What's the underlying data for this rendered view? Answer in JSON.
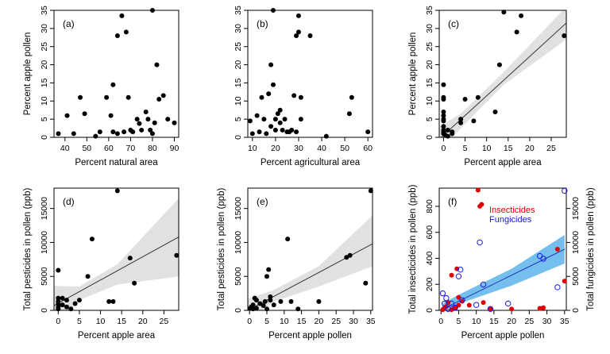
{
  "chart_data": [
    {
      "panel_label": "(a)",
      "type": "scatter",
      "xlabel": "Percent natural area",
      "ylabel": "Percent apple pollen",
      "xlim": [
        35,
        92
      ],
      "ylim": [
        0,
        35
      ],
      "xticks": [
        40,
        50,
        60,
        70,
        80,
        90
      ],
      "yticks": [
        0,
        5,
        10,
        15,
        20,
        25,
        30,
        35
      ],
      "points": [
        [
          37,
          1
        ],
        [
          41,
          6
        ],
        [
          44,
          1
        ],
        [
          47,
          11
        ],
        [
          49,
          6.5
        ],
        [
          54,
          0.3
        ],
        [
          56,
          1.5
        ],
        [
          59,
          11
        ],
        [
          61,
          6
        ],
        [
          62,
          14.5
        ],
        [
          62,
          1.5
        ],
        [
          64,
          28
        ],
        [
          64,
          1
        ],
        [
          66,
          33.5
        ],
        [
          67,
          1.5
        ],
        [
          68,
          29
        ],
        [
          69,
          11
        ],
        [
          70,
          2
        ],
        [
          71,
          1.5
        ],
        [
          73,
          5
        ],
        [
          74,
          3.8
        ],
        [
          75,
          2
        ],
        [
          77,
          7
        ],
        [
          78,
          5
        ],
        [
          79,
          2
        ],
        [
          80,
          35
        ],
        [
          80,
          1
        ],
        [
          81,
          4
        ],
        [
          82,
          20
        ],
        [
          83,
          10.5
        ],
        [
          85,
          11.5
        ],
        [
          87,
          5
        ],
        [
          90,
          4
        ]
      ]
    },
    {
      "panel_label": "(b)",
      "type": "scatter",
      "xlabel": "Percent agricultural area",
      "ylabel": "",
      "xlim": [
        8,
        62
      ],
      "ylim": [
        0,
        35
      ],
      "xticks": [
        10,
        20,
        30,
        40,
        50,
        60
      ],
      "yticks": [
        0,
        5,
        10,
        15,
        20,
        25,
        30,
        35
      ],
      "points": [
        [
          9,
          4.5
        ],
        [
          10,
          1
        ],
        [
          12,
          6
        ],
        [
          13,
          1.5
        ],
        [
          14,
          11
        ],
        [
          15,
          5
        ],
        [
          16,
          1
        ],
        [
          17,
          12
        ],
        [
          18,
          3
        ],
        [
          18,
          20
        ],
        [
          19,
          14.5
        ],
        [
          19,
          35
        ],
        [
          20,
          5
        ],
        [
          20,
          2
        ],
        [
          21,
          6.5
        ],
        [
          22,
          7.5
        ],
        [
          22,
          4
        ],
        [
          23,
          2
        ],
        [
          24,
          5
        ],
        [
          25,
          1.5
        ],
        [
          26,
          1.5
        ],
        [
          27,
          2
        ],
        [
          28,
          11.5
        ],
        [
          29,
          1.5
        ],
        [
          29,
          28
        ],
        [
          30,
          33.5
        ],
        [
          30,
          29
        ],
        [
          31,
          5
        ],
        [
          31,
          11
        ],
        [
          35,
          28
        ],
        [
          42,
          0.3
        ],
        [
          52,
          6.5
        ],
        [
          53,
          11
        ],
        [
          60,
          1.5
        ]
      ]
    },
    {
      "panel_label": "(c)",
      "type": "scatter",
      "xlabel": "Percent apple area",
      "ylabel": "Percent apple pollen",
      "xlim": [
        -1,
        28.5
      ],
      "ylim": [
        0,
        35
      ],
      "xticks": [
        0,
        5,
        10,
        15,
        20,
        25
      ],
      "yticks": [
        0,
        5,
        10,
        15,
        20,
        25,
        30,
        35
      ],
      "fit": [
        [
          -1,
          -0.5
        ],
        [
          28.5,
          31.5
        ]
      ],
      "band_low": [
        [
          -1,
          -4
        ],
        [
          4,
          2.5
        ],
        [
          14,
          14.5
        ],
        [
          28.5,
          27
        ]
      ],
      "band_high": [
        [
          -1,
          3
        ],
        [
          4,
          6.5
        ],
        [
          14,
          18
        ],
        [
          28.5,
          36
        ]
      ],
      "band_color": "#c8c8c8",
      "points": [
        [
          0,
          14.5
        ],
        [
          0,
          11
        ],
        [
          0,
          10.5
        ],
        [
          0,
          7
        ],
        [
          0,
          6
        ],
        [
          0,
          5
        ],
        [
          0,
          4.5
        ],
        [
          0,
          3
        ],
        [
          0,
          2
        ],
        [
          0,
          1.5
        ],
        [
          0,
          1
        ],
        [
          0.5,
          0.5
        ],
        [
          1,
          0.3
        ],
        [
          1,
          2
        ],
        [
          2,
          1.5
        ],
        [
          2,
          1
        ],
        [
          4,
          4
        ],
        [
          4,
          5
        ],
        [
          5,
          10.5
        ],
        [
          7,
          4.5
        ],
        [
          8,
          11
        ],
        [
          12,
          7
        ],
        [
          13,
          20
        ],
        [
          14,
          34.5
        ],
        [
          17,
          29
        ],
        [
          18,
          33.5
        ],
        [
          28,
          28
        ]
      ]
    },
    {
      "panel_label": "(d)",
      "type": "scatter",
      "xlabel": "Percent apple area",
      "ylabel": "Total pesticides in pollen (ppb)",
      "xlim": [
        -1,
        28.5
      ],
      "ylim": [
        0,
        18000
      ],
      "xticks": [
        0,
        5,
        10,
        15,
        20,
        25
      ],
      "yticks": [
        0,
        5000,
        10000,
        15000
      ],
      "fit": [
        [
          -1,
          700
        ],
        [
          28.5,
          10800
        ]
      ],
      "band_low": [
        [
          -1,
          -2500
        ],
        [
          5,
          1500
        ],
        [
          14,
          3800
        ],
        [
          28.5,
          5000
        ]
      ],
      "band_high": [
        [
          -1,
          3600
        ],
        [
          5,
          3500
        ],
        [
          14,
          6800
        ],
        [
          28.5,
          16500
        ]
      ],
      "band_color": "#c8c8c8",
      "points": [
        [
          0,
          5900
        ],
        [
          0,
          1800
        ],
        [
          0,
          1300
        ],
        [
          0,
          900
        ],
        [
          0,
          500
        ],
        [
          0,
          200
        ],
        [
          1,
          1800
        ],
        [
          1,
          800
        ],
        [
          2,
          1500
        ],
        [
          2,
          500
        ],
        [
          3,
          200
        ],
        [
          4,
          1000
        ],
        [
          5,
          1500
        ],
        [
          7,
          5000
        ],
        [
          8,
          10500
        ],
        [
          12,
          1300
        ],
        [
          13,
          1300
        ],
        [
          14,
          17600
        ],
        [
          17,
          7700
        ],
        [
          18,
          4000
        ],
        [
          28,
          8100
        ]
      ]
    },
    {
      "panel_label": "(e)",
      "type": "scatter",
      "xlabel": "Percent apple pollen",
      "ylabel": "Total pesticides in pollen (ppb)",
      "xlim": [
        -0.5,
        35.5
      ],
      "ylim": [
        0,
        18000
      ],
      "xticks": [
        0,
        5,
        10,
        15,
        20,
        25,
        30,
        35
      ],
      "yticks": [
        0,
        5000,
        10000,
        15000
      ],
      "fit": [
        [
          -0.5,
          0
        ],
        [
          35.5,
          9800
        ]
      ],
      "band_low": [
        [
          -0.5,
          -1800
        ],
        [
          7,
          1300
        ],
        [
          20,
          3500
        ],
        [
          35.5,
          6500
        ]
      ],
      "band_high": [
        [
          -0.5,
          1700
        ],
        [
          7,
          3000
        ],
        [
          20,
          6500
        ],
        [
          35.5,
          14000
        ]
      ],
      "band_color": "#c8c8c8",
      "points": [
        [
          0.2,
          300
        ],
        [
          0.5,
          500
        ],
        [
          1,
          800
        ],
        [
          1,
          200
        ],
        [
          1.5,
          1800
        ],
        [
          2,
          1500
        ],
        [
          2,
          300
        ],
        [
          3,
          1000
        ],
        [
          4,
          700
        ],
        [
          4.5,
          1300
        ],
        [
          5,
          200
        ],
        [
          5,
          5000
        ],
        [
          5.5,
          6000
        ],
        [
          6,
          1500
        ],
        [
          6,
          2000
        ],
        [
          7,
          800
        ],
        [
          9,
          1300
        ],
        [
          11,
          10500
        ],
        [
          12,
          1300
        ],
        [
          14,
          200
        ],
        [
          20,
          1300
        ],
        [
          28,
          7800
        ],
        [
          29,
          8100
        ],
        [
          33.5,
          4000
        ],
        [
          35,
          17600
        ]
      ]
    },
    {
      "panel_label": "(f)",
      "type": "scatter",
      "xlabel": "Percent apple pollen",
      "ylabel": "Total insecticides in pollen (ppb)",
      "ylabel_right": "Total fungicides in pollen (ppb)",
      "xlim": [
        -0.5,
        35.5
      ],
      "ylim": [
        0,
        940
      ],
      "ylim_right": [
        0,
        18000
      ],
      "xticks": [
        0,
        5,
        10,
        15,
        20,
        25,
        30,
        35
      ],
      "yticks": [
        0,
        200,
        400,
        600,
        800
      ],
      "yticks_right": [
        0,
        5000,
        10000,
        15000
      ],
      "fit": [
        [
          0.5,
          10
        ],
        [
          35,
          470
        ]
      ],
      "band_low": [
        [
          0.5,
          -40
        ],
        [
          5,
          50
        ],
        [
          20,
          190
        ],
        [
          35,
          360
        ]
      ],
      "band_high": [
        [
          0.5,
          55
        ],
        [
          5,
          120
        ],
        [
          20,
          320
        ],
        [
          35,
          580
        ]
      ],
      "band_color": "#66b8ec",
      "legend": [
        {
          "name": "Insecticides",
          "color": "#e00000"
        },
        {
          "name": "Fungicides",
          "color": "#1a1adf"
        }
      ],
      "series": [
        {
          "name": "Insecticides",
          "color": "#e00000",
          "marker": "filled",
          "points": [
            [
              0.5,
              5
            ],
            [
              1,
              20
            ],
            [
              1.5,
              30
            ],
            [
              2,
              60
            ],
            [
              3,
              270
            ],
            [
              3,
              5
            ],
            [
              4,
              20
            ],
            [
              4.5,
              320
            ],
            [
              5,
              100
            ],
            [
              5,
              40
            ],
            [
              6,
              70
            ],
            [
              8,
              40
            ],
            [
              10.5,
              925
            ],
            [
              11,
              800
            ],
            [
              11.5,
              815
            ],
            [
              12,
              60
            ],
            [
              14,
              10
            ],
            [
              20,
              10
            ],
            [
              28,
              15
            ],
            [
              29,
              20
            ],
            [
              33,
              470
            ],
            [
              35,
              225
            ]
          ]
        },
        {
          "name": "Fungicides",
          "color": "#1a1adf",
          "marker": "open",
          "points": [
            [
              0.5,
              2500
            ],
            [
              1,
              1000
            ],
            [
              1.5,
              1800
            ],
            [
              2,
              200
            ],
            [
              3,
              1000
            ],
            [
              4,
              400
            ],
            [
              5,
              5000
            ],
            [
              5.5,
              6000
            ],
            [
              6,
              1500
            ],
            [
              10,
              800
            ],
            [
              11,
              10000
            ],
            [
              12,
              3800
            ],
            [
              14,
              200
            ],
            [
              19,
              1000
            ],
            [
              28,
              8000
            ],
            [
              29,
              7600
            ],
            [
              33,
              3400
            ],
            [
              35,
              17600
            ]
          ]
        }
      ]
    }
  ]
}
